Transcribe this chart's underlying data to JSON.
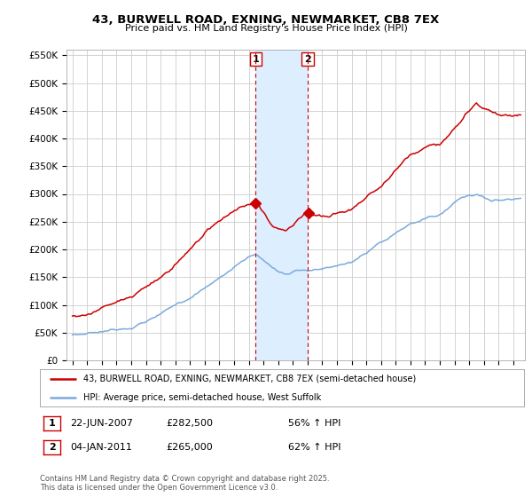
{
  "title": "43, BURWELL ROAD, EXNING, NEWMARKET, CB8 7EX",
  "subtitle": "Price paid vs. HM Land Registry's House Price Index (HPI)",
  "ylim": [
    0,
    560000
  ],
  "yticks": [
    0,
    50000,
    100000,
    150000,
    200000,
    250000,
    300000,
    350000,
    400000,
    450000,
    500000,
    550000
  ],
  "ytick_labels": [
    "£0",
    "£50K",
    "£100K",
    "£150K",
    "£200K",
    "£250K",
    "£300K",
    "£350K",
    "£400K",
    "£450K",
    "£500K",
    "£550K"
  ],
  "line1_color": "#cc0000",
  "line2_color": "#7aabdc",
  "shading_color": "#ddeeff",
  "vline_color": "#cc0000",
  "sale1_year": 2007.47,
  "sale2_year": 2011.01,
  "sale1_price": 282500,
  "sale2_price": 265000,
  "sale1_date": "22-JUN-2007",
  "sale1_price_str": "£282,500",
  "sale1_hpi": "56% ↑ HPI",
  "sale2_date": "04-JAN-2011",
  "sale2_price_str": "£265,000",
  "sale2_hpi": "62% ↑ HPI",
  "legend1_label": "43, BURWELL ROAD, EXNING, NEWMARKET, CB8 7EX (semi-detached house)",
  "legend2_label": "HPI: Average price, semi-detached house, West Suffolk",
  "footnote": "Contains HM Land Registry data © Crown copyright and database right 2025.\nThis data is licensed under the Open Government Licence v3.0.",
  "bg_color": "#ffffff",
  "grid_color": "#cccccc",
  "xlim_left": 1994.6,
  "xlim_right": 2025.8
}
